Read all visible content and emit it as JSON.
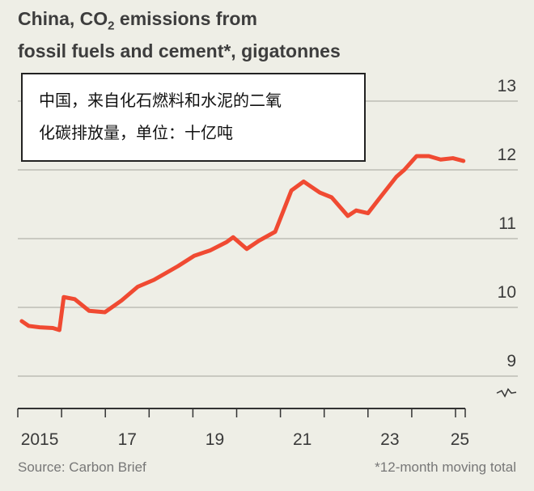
{
  "chart_data": {
    "type": "line",
    "title_parts": [
      "China, CO",
      "2",
      " emissions from",
      "fossil fuels and cement*, gigatonnes"
    ],
    "annotation_zh": [
      "中国，来自化石燃料和水泥的二氧",
      "化碳排放量，单位：十亿吨"
    ],
    "ylim": [
      8.8,
      13
    ],
    "yticks": [
      9,
      10,
      11,
      12,
      13
    ],
    "xlim": [
      2015,
      2025.2
    ],
    "xtick_labels": [
      {
        "year": 2015.5,
        "label": "2015"
      },
      {
        "year": 2017.5,
        "label": "17"
      },
      {
        "year": 2019.5,
        "label": "19"
      },
      {
        "year": 2021.5,
        "label": "21"
      },
      {
        "year": 2023.5,
        "label": "23"
      },
      {
        "year": 2025.1,
        "label": "25"
      }
    ],
    "grid": true,
    "color": "#f04a32",
    "series": [
      {
        "x": [
          2015.09,
          2015.25,
          2015.5,
          2015.8,
          2015.95,
          2016.05,
          2016.3,
          2016.63,
          2016.99,
          2017.37,
          2017.74,
          2018.11,
          2018.66,
          2019.03,
          2019.4,
          2019.77,
          2019.92,
          2020.23,
          2020.51,
          2020.88,
          2021.25,
          2021.53,
          2021.9,
          2022.17,
          2022.54,
          2022.73,
          2023.0,
          2023.28,
          2023.65,
          2023.83,
          2024.11,
          2024.39,
          2024.66,
          2024.94,
          2025.18
        ],
        "y": [
          9.8,
          9.73,
          9.71,
          9.7,
          9.67,
          10.15,
          10.12,
          9.95,
          9.93,
          10.1,
          10.3,
          10.4,
          10.6,
          10.75,
          10.83,
          10.95,
          11.02,
          10.85,
          10.97,
          11.1,
          11.7,
          11.83,
          11.67,
          11.6,
          11.33,
          11.41,
          11.37,
          11.6,
          11.9,
          12.0,
          12.2,
          12.2,
          12.15,
          12.17,
          12.13
        ]
      }
    ],
    "source": "Source: Carbon Brief",
    "note": "*12-month moving total"
  }
}
